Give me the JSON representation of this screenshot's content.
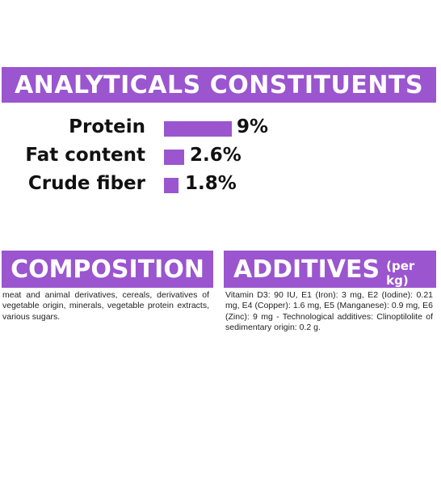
{
  "analytics": {
    "title": "ANALYTICALS CONSTITUENTS",
    "rows": [
      {
        "label": "Protein",
        "value": "9%",
        "bar_fraction": 0.09
      },
      {
        "label": "Fat content",
        "value": "2.6%",
        "bar_fraction": 0.026
      },
      {
        "label": "Crude fiber",
        "value": "1.8%",
        "bar_fraction": 0.018
      }
    ]
  },
  "composition": {
    "title": "COMPOSITION",
    "text": "meat and animal derivatives, cereals, derivatives of vegetable origin, minerals, vegetable protein extracts, various sugars."
  },
  "additives": {
    "title": "ADDITIVES",
    "subtitle": "(per kg)",
    "text": "Vitamin D3: 90 IU, E1 (Iron): 3 mg, E2 (Iodine): 0.21 mg, E4 (Copper): 1.6 mg, E5 (Manganese): 0.9 mg, E6 (Zinc): 9 mg - Technological additives: Clinoptilolite of sedimentary origin: 0.2 g."
  },
  "colors": {
    "accent": "#9a55cf",
    "text": "#111111",
    "background": "#ffffff"
  }
}
